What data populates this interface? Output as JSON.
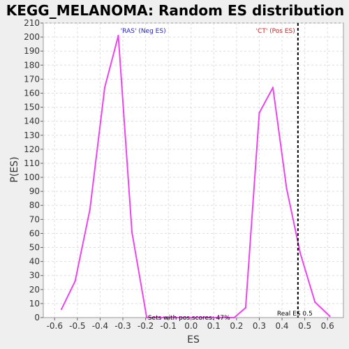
{
  "chart_data": {
    "type": "line",
    "title": "KEGG_MELANOMA: Random ES distribution",
    "xlabel": "ES",
    "ylabel": "P(ES)",
    "xlim": [
      -0.65,
      0.67
    ],
    "ylim": [
      0,
      210
    ],
    "x_ticks": [
      -0.6,
      -0.5,
      -0.4,
      -0.3,
      -0.2,
      -0.1,
      0.0,
      0.1,
      0.2,
      0.3,
      0.4,
      0.5,
      0.6
    ],
    "x_tick_labels": [
      "-0.6",
      "-0.5",
      "-0.4",
      "-0.3",
      "-0.2",
      "-0.1",
      "0.0",
      "0.1",
      "0.2",
      "0.3",
      "0.4",
      "0.5",
      "0.6"
    ],
    "y_ticks": [
      0,
      10,
      20,
      30,
      40,
      50,
      60,
      70,
      80,
      90,
      100,
      110,
      120,
      130,
      140,
      150,
      160,
      170,
      180,
      190,
      200,
      210
    ],
    "grid": true,
    "series": [
      {
        "color": "#ee44ee",
        "x": [
          -0.57,
          -0.51,
          -0.445,
          -0.38,
          -0.32,
          -0.26,
          -0.195,
          0.19,
          0.24,
          0.3,
          0.36,
          0.42,
          0.48,
          0.545,
          0.61
        ],
        "y": [
          6,
          26,
          77,
          164,
          201,
          61,
          0,
          0,
          7,
          146,
          164,
          92,
          46,
          11,
          1
        ]
      }
    ],
    "real_es": {
      "x": 0.47,
      "label": "Real ES 0.5",
      "color": "#000000"
    },
    "annotations": [
      {
        "text": "'RAS' (Neg ES)",
        "x": -0.31,
        "y": 205,
        "color": "#2222cc"
      },
      {
        "text": "'CT' (Pos ES)",
        "x": 0.285,
        "y": 205,
        "color": "#cc2222"
      },
      {
        "text": "Sets with pos scores: 47%",
        "x": -0.19,
        "y": 0.5,
        "color": "#000000"
      }
    ]
  }
}
